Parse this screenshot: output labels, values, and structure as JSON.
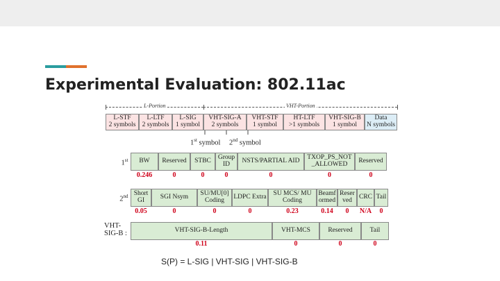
{
  "title": "Experimental Evaluation: 802.11ac",
  "caption": "S(P) = L-SIG | VHT-SIG | VHT-SIG-B",
  "figure": {
    "l_portion_label": "L-Portion",
    "vht_portion_label": "VHT-Portion",
    "preamble": [
      {
        "name": "L-STF",
        "dur": "2 symbols"
      },
      {
        "name": "L-LTF",
        "dur": "2 symbols"
      },
      {
        "name": "L-SIG",
        "dur": "1 symbol"
      },
      {
        "name": "VHT-SIG-A",
        "dur": "2 symbols"
      },
      {
        "name": "VHT-STF",
        "dur": "1 symbol"
      },
      {
        "name": "HT-LTF",
        "dur": ">1 symbols"
      },
      {
        "name": "VHT-SIG-B",
        "dur": "1 symbol"
      },
      {
        "name": "Data",
        "dur": "N symbols"
      }
    ],
    "sym1_num": "1",
    "sym1_sup": "st",
    "sym1_word": "symbol",
    "sym2_num": "2",
    "sym2_sup": "nd",
    "sym2_word": "symbol",
    "row1": {
      "label_num": "1",
      "label_sup": "st",
      "label_suffix": ":",
      "fields": [
        "BW",
        "Reserved",
        "STBC",
        "Group ID",
        "NSTS/PARTIAL AID",
        "TXOP_PS_NOT _ALLOWED",
        "Reserved"
      ],
      "probs": [
        "0.246",
        "0",
        "0",
        "0",
        "0",
        "0",
        "0"
      ]
    },
    "row2": {
      "label_num": "2",
      "label_sup": "nd",
      "label_suffix": ":",
      "fields": [
        "Short GI",
        "SGI Nsym",
        "SU/MU[0] Coding",
        "LDPC Extra",
        "SU MCS/ MU Coding",
        "Beamf ormed",
        "Reser ved",
        "CRC",
        "Tail"
      ],
      "probs": [
        "0.05",
        "0",
        "0",
        "0",
        "0.23",
        "0.14",
        "0",
        "N/A",
        "0"
      ]
    },
    "row3": {
      "label": "VHT- SIG-B :",
      "fields": [
        "VHT-SIG-B-Length",
        "VHT-MCS",
        "Reserved",
        "Tail"
      ],
      "probs": [
        "0.11",
        "0",
        "0",
        "0"
      ]
    }
  }
}
